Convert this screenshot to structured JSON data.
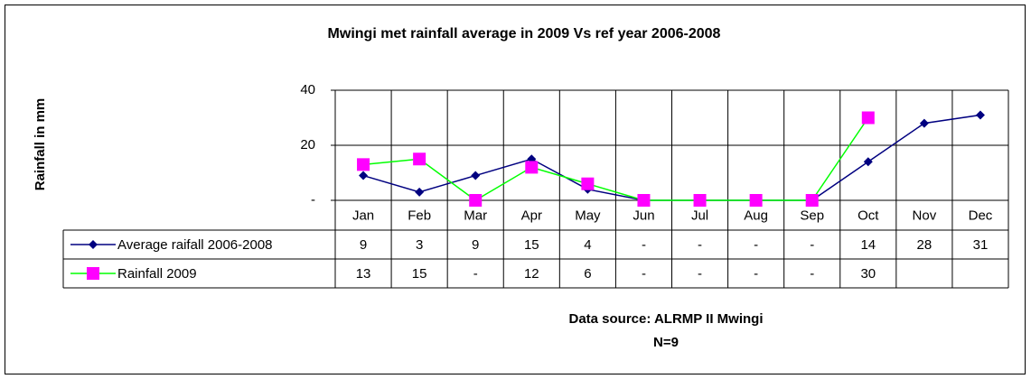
{
  "chart_data": {
    "type": "line",
    "title": "Mwingi met rainfall average in 2009 Vs ref year 2006-2008",
    "y_label": "Rainfall in mm",
    "categories": [
      "Jan",
      "Feb",
      "Mar",
      "Apr",
      "May",
      "Jun",
      "Jul",
      "Aug",
      "Sep",
      "Oct",
      "Nov",
      "Dec"
    ],
    "series": [
      {
        "name": "Average raifall 2006-2008",
        "color": "#000080",
        "marker": "diamond",
        "values": [
          9,
          3,
          9,
          15,
          4,
          0,
          0,
          0,
          0,
          14,
          28,
          31
        ],
        "value_labels": [
          "9",
          "3",
          "9",
          "15",
          "4",
          "-",
          "-",
          "-",
          "-",
          "14",
          "28",
          "31"
        ]
      },
      {
        "name": "Rainfall 2009",
        "color": "#00ff00",
        "marker_color": "#ff00ff",
        "marker": "square",
        "values": [
          13,
          15,
          0,
          12,
          6,
          0,
          0,
          0,
          0,
          30,
          null,
          null
        ],
        "value_labels": [
          "13",
          "15",
          "-",
          "12",
          "6",
          "-",
          "-",
          "-",
          "-",
          "30",
          null,
          null
        ]
      }
    ],
    "ylim": [
      0,
      40
    ],
    "yticks": [
      {
        "value": 0,
        "label": "-"
      },
      20,
      40
    ],
    "grid": true,
    "source": "Data source: ALRMP II Mwingi",
    "note": "N=9"
  }
}
